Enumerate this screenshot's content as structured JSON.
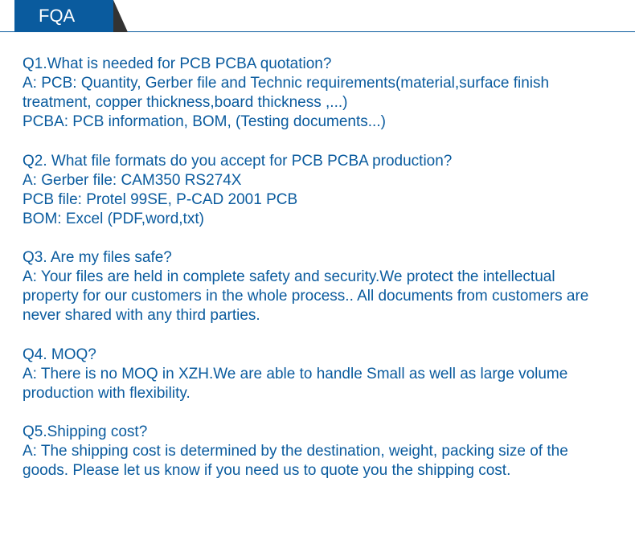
{
  "colors": {
    "primary": "#0a5b9e",
    "tab_corner": "#333333",
    "background": "#ffffff",
    "text": "#0a5b9e"
  },
  "typography": {
    "body_fontsize": 19,
    "tab_fontsize": 22,
    "line_height": 1.27
  },
  "header": {
    "tab_label": "FQA"
  },
  "faq": [
    {
      "q": "Q1.What is needed for PCB PCBA quotation?",
      "a": "A: PCB: Quantity, Gerber file and Technic requirements(material,surface finish treatment, copper thickness,board thickness ,...)\nPCBA: PCB information, BOM, (Testing documents...)"
    },
    {
      "q": "Q2. What file formats do you accept for PCB PCBA production?",
      "a": "A: Gerber file: CAM350 RS274X\nPCB file: Protel 99SE, P-CAD 2001 PCB\nBOM: Excel (PDF,word,txt)"
    },
    {
      "q": "Q3. Are my files safe?",
      "a": "A: Your files are held in complete safety and security.We protect the intellectual property for our customers in the whole process.. All documents from customers are never shared with any third parties."
    },
    {
      "q": "Q4. MOQ?",
      "a": "A: There is no MOQ in XZH.We are able to handle Small as well as large volume production with flexibility."
    },
    {
      "q": "Q5.Shipping cost?",
      "a": "A: The shipping cost is determined by the destination, weight, packing size of the goods. Please let us know if you need us to quote you the shipping cost."
    }
  ]
}
